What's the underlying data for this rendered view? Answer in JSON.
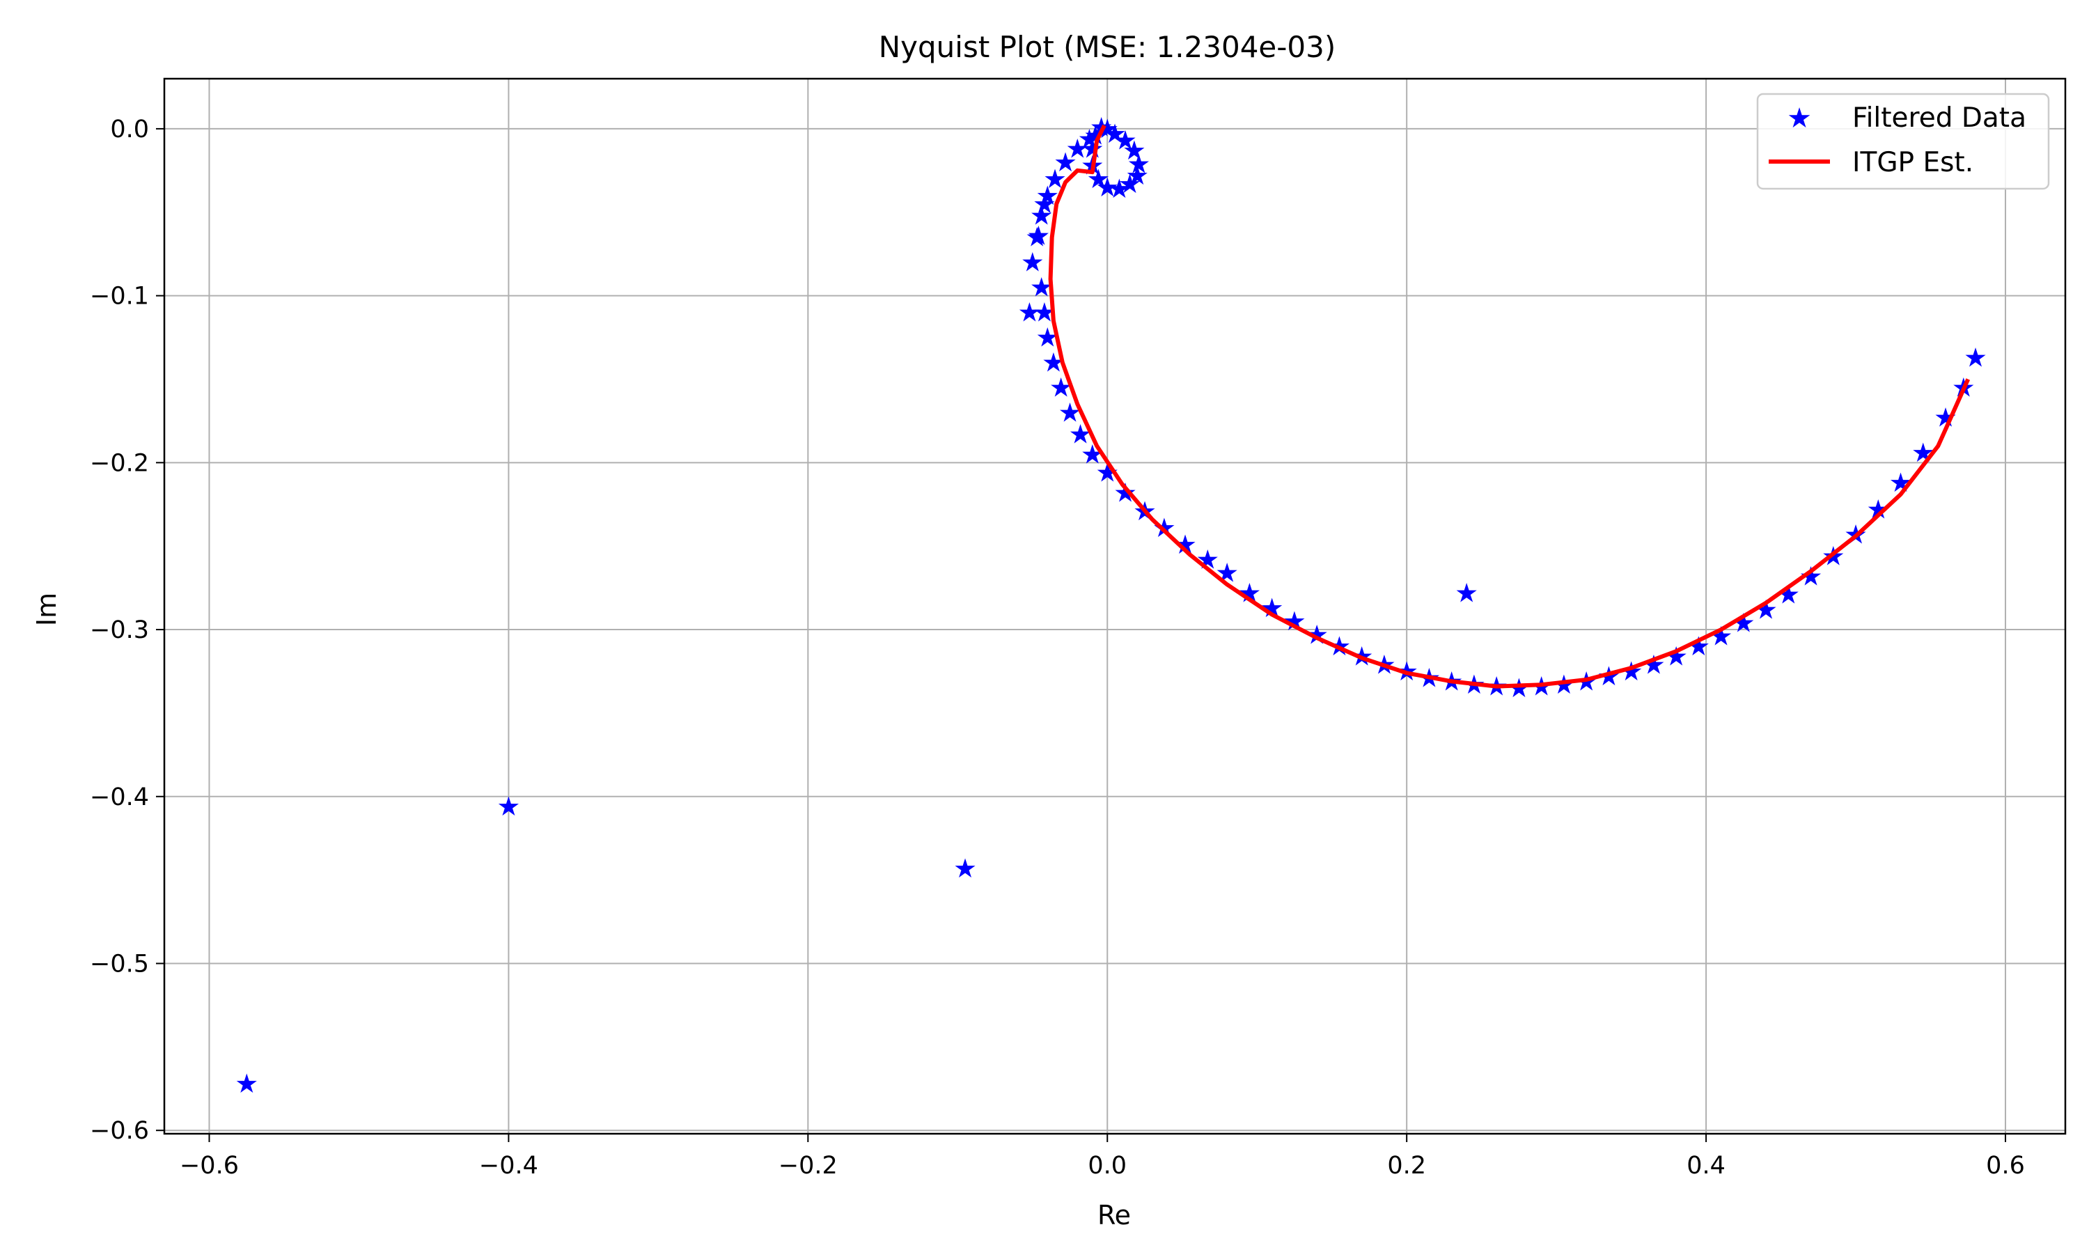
{
  "chart_data": {
    "type": "scatter",
    "title": "Nyquist Plot (MSE: 1.2304e-03)",
    "xlabel": "Re",
    "ylabel": "Im",
    "xlim": [
      -0.63,
      0.64
    ],
    "ylim": [
      -0.602,
      0.03
    ],
    "grid": true,
    "legend_position": "top-right",
    "xticks": [
      -0.6,
      -0.4,
      -0.2,
      0.0,
      0.2,
      0.4,
      0.6
    ],
    "xtick_labels": [
      "−0.6",
      "−0.4",
      "−0.2",
      "0.0",
      "0.2",
      "0.4",
      "0.6"
    ],
    "yticks": [
      0.0,
      -0.1,
      -0.2,
      -0.3,
      -0.4,
      -0.5,
      -0.6
    ],
    "ytick_labels": [
      "0.0",
      "−0.1",
      "−0.2",
      "−0.3",
      "−0.4",
      "−0.5",
      "−0.6"
    ],
    "colors": {
      "filtered": "#0000ff",
      "estimate": "#ff0000",
      "grid": "#b0b0b0"
    },
    "series": [
      {
        "name": "Filtered Data",
        "kind": "scatter",
        "marker": "star",
        "color": "#0000ff",
        "points": [
          [
            -0.575,
            -0.572
          ],
          [
            -0.4,
            -0.406
          ],
          [
            -0.095,
            -0.443
          ],
          [
            0.24,
            -0.278
          ],
          [
            0.0,
            0.0
          ],
          [
            0.005,
            -0.003
          ],
          [
            0.012,
            -0.007
          ],
          [
            0.018,
            -0.013
          ],
          [
            0.021,
            -0.021
          ],
          [
            0.02,
            -0.028
          ],
          [
            0.015,
            -0.033
          ],
          [
            0.008,
            -0.036
          ],
          [
            0.0,
            -0.035
          ],
          [
            -0.006,
            -0.03
          ],
          [
            -0.01,
            -0.022
          ],
          [
            -0.01,
            -0.012
          ],
          [
            -0.008,
            -0.004
          ],
          [
            -0.004,
            0.001
          ],
          [
            -0.012,
            -0.006
          ],
          [
            -0.02,
            -0.012
          ],
          [
            -0.028,
            -0.02
          ],
          [
            -0.035,
            -0.03
          ],
          [
            -0.04,
            -0.04
          ],
          [
            -0.044,
            -0.052
          ],
          [
            -0.047,
            -0.065
          ],
          [
            -0.05,
            -0.08
          ],
          [
            -0.046,
            -0.064
          ],
          [
            -0.042,
            -0.045
          ],
          [
            -0.044,
            -0.095
          ],
          [
            -0.052,
            -0.11
          ],
          [
            -0.042,
            -0.11
          ],
          [
            -0.04,
            -0.125
          ],
          [
            -0.036,
            -0.14
          ],
          [
            -0.031,
            -0.155
          ],
          [
            -0.025,
            -0.17
          ],
          [
            -0.018,
            -0.183
          ],
          [
            -0.01,
            -0.195
          ],
          [
            0.0,
            -0.206
          ],
          [
            0.012,
            -0.218
          ],
          [
            0.025,
            -0.229
          ],
          [
            0.038,
            -0.239
          ],
          [
            0.052,
            -0.249
          ],
          [
            0.067,
            -0.258
          ],
          [
            0.08,
            -0.266
          ],
          [
            0.095,
            -0.278
          ],
          [
            0.11,
            -0.287
          ],
          [
            0.125,
            -0.295
          ],
          [
            0.14,
            -0.303
          ],
          [
            0.155,
            -0.31
          ],
          [
            0.17,
            -0.316
          ],
          [
            0.185,
            -0.321
          ],
          [
            0.2,
            -0.325
          ],
          [
            0.215,
            -0.329
          ],
          [
            0.23,
            -0.331
          ],
          [
            0.245,
            -0.333
          ],
          [
            0.26,
            -0.334
          ],
          [
            0.275,
            -0.335
          ],
          [
            0.29,
            -0.334
          ],
          [
            0.305,
            -0.333
          ],
          [
            0.32,
            -0.331
          ],
          [
            0.335,
            -0.328
          ],
          [
            0.35,
            -0.325
          ],
          [
            0.365,
            -0.321
          ],
          [
            0.38,
            -0.316
          ],
          [
            0.395,
            -0.31
          ],
          [
            0.41,
            -0.304
          ],
          [
            0.425,
            -0.296
          ],
          [
            0.44,
            -0.288
          ],
          [
            0.455,
            -0.279
          ],
          [
            0.47,
            -0.268
          ],
          [
            0.485,
            -0.256
          ],
          [
            0.5,
            -0.243
          ],
          [
            0.515,
            -0.228
          ],
          [
            0.53,
            -0.212
          ],
          [
            0.545,
            -0.194
          ],
          [
            0.56,
            -0.173
          ],
          [
            0.572,
            -0.155
          ],
          [
            0.58,
            -0.137
          ]
        ]
      },
      {
        "name": "ITGP Est.",
        "kind": "line",
        "color": "#ff0000",
        "points": [
          [
            -0.002,
            0.002
          ],
          [
            -0.007,
            -0.007
          ],
          [
            -0.01,
            -0.026
          ],
          [
            -0.02,
            -0.025
          ],
          [
            -0.028,
            -0.032
          ],
          [
            -0.034,
            -0.045
          ],
          [
            -0.037,
            -0.065
          ],
          [
            -0.038,
            -0.09
          ],
          [
            -0.036,
            -0.115
          ],
          [
            -0.03,
            -0.14
          ],
          [
            -0.02,
            -0.165
          ],
          [
            -0.007,
            -0.19
          ],
          [
            0.01,
            -0.213
          ],
          [
            0.03,
            -0.234
          ],
          [
            0.055,
            -0.255
          ],
          [
            0.08,
            -0.273
          ],
          [
            0.11,
            -0.291
          ],
          [
            0.14,
            -0.305
          ],
          [
            0.17,
            -0.317
          ],
          [
            0.2,
            -0.326
          ],
          [
            0.23,
            -0.331
          ],
          [
            0.26,
            -0.334
          ],
          [
            0.29,
            -0.333
          ],
          [
            0.32,
            -0.33
          ],
          [
            0.35,
            -0.323
          ],
          [
            0.38,
            -0.313
          ],
          [
            0.41,
            -0.3
          ],
          [
            0.44,
            -0.284
          ],
          [
            0.47,
            -0.265
          ],
          [
            0.5,
            -0.244
          ],
          [
            0.53,
            -0.219
          ],
          [
            0.555,
            -0.19
          ],
          [
            0.575,
            -0.15
          ]
        ]
      }
    ]
  }
}
